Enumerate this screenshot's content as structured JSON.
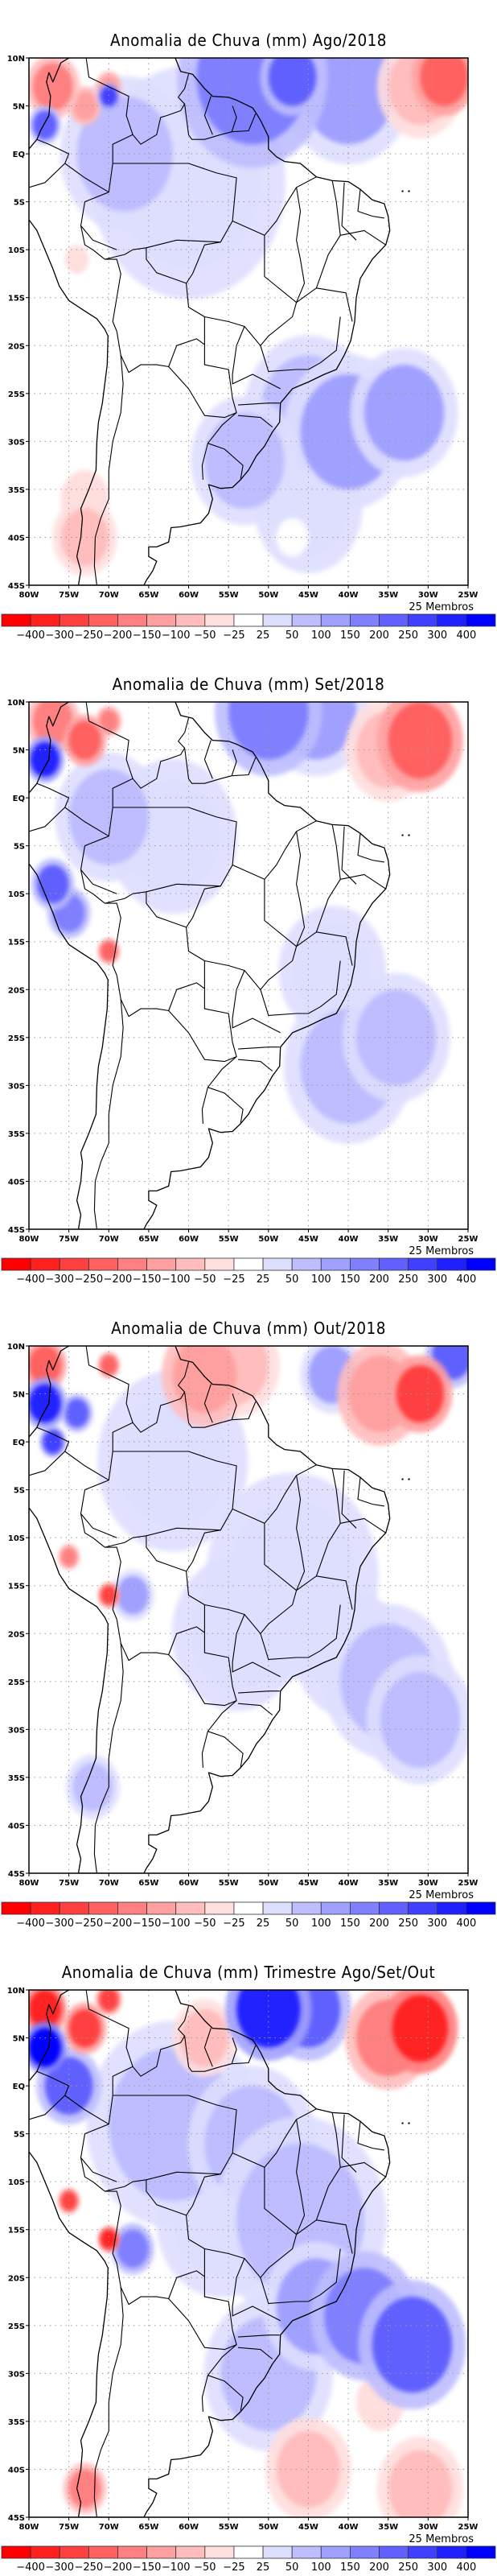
{
  "figure": {
    "members_label": "25 Membros",
    "lat_ticks": [
      "10N",
      "5N",
      "EQ",
      "5S",
      "10S",
      "15S",
      "20S",
      "25S",
      "30S",
      "35S",
      "40S",
      "45S"
    ],
    "lon_ticks": [
      "80W",
      "75W",
      "70W",
      "65W",
      "60W",
      "55W",
      "50W",
      "45W",
      "40W",
      "35W",
      "30W",
      "25W"
    ],
    "colorbar": {
      "labels": [
        "-400",
        "-300",
        "-250",
        "-200",
        "-150",
        "-100",
        "-50",
        "-25",
        "25",
        "50",
        "100",
        "150",
        "200",
        "250",
        "300",
        "400"
      ],
      "colors": [
        "#ff0000",
        "#ff2020",
        "#ff4040",
        "#ff6060",
        "#ff8080",
        "#ffa0a0",
        "#ffbdbd",
        "#ffdede",
        "#ffffff",
        "#dedeff",
        "#bdbdff",
        "#a0a0ff",
        "#8080ff",
        "#6060ff",
        "#4040ff",
        "#2020ff",
        "#0000ff"
      ]
    }
  },
  "chart_data": [
    {
      "type": "heatmap",
      "title": "Anomalia de Chuva (mm) Ago/2018",
      "xlabel": "",
      "ylabel": "",
      "xlim": [
        -80,
        -25
      ],
      "ylim": [
        -45,
        10
      ],
      "units": "mm",
      "grid": true,
      "legend": "bottom colorbar",
      "anomalies": [
        {
          "lon": -77,
          "lat": 7,
          "value": -200,
          "r": 2.5
        },
        {
          "lon": -78,
          "lat": 3,
          "value": 200,
          "r": 1.5
        },
        {
          "lon": -73,
          "lat": 5,
          "value": -150,
          "r": 1.5
        },
        {
          "lon": -70,
          "lat": 7,
          "value": -150,
          "r": 1.2
        },
        {
          "lon": -70,
          "lat": 6,
          "value": 250,
          "r": 1
        },
        {
          "lon": -68,
          "lat": 0,
          "value": 50,
          "r": 6
        },
        {
          "lon": -60,
          "lat": -3,
          "value": 25,
          "r": 9
        },
        {
          "lon": -52,
          "lat": 8,
          "value": 150,
          "r": 7
        },
        {
          "lon": -47,
          "lat": 8,
          "value": 200,
          "r": 3
        },
        {
          "lon": -40,
          "lat": 7,
          "value": 100,
          "r": 6
        },
        {
          "lon": -28,
          "lat": 8,
          "value": -250,
          "r": 3
        },
        {
          "lon": -31,
          "lat": 7,
          "value": -100,
          "r": 4
        },
        {
          "lon": -74,
          "lat": -11,
          "value": -50,
          "r": 1.5
        },
        {
          "lon": -73,
          "lat": -40,
          "value": -100,
          "r": 3
        },
        {
          "lon": -73,
          "lat": -36,
          "value": -50,
          "r": 3
        },
        {
          "lon": -40,
          "lat": -29,
          "value": 100,
          "r": 6
        },
        {
          "lon": -33,
          "lat": -27,
          "value": 100,
          "r": 5
        },
        {
          "lon": -45,
          "lat": -27,
          "value": 50,
          "r": 6
        },
        {
          "lon": -53,
          "lat": -32,
          "value": 50,
          "r": 5
        },
        {
          "lon": -45,
          "lat": -37,
          "value": 25,
          "r": 5
        },
        {
          "lon": -33,
          "lat": -40,
          "value": -25,
          "r": 3
        },
        {
          "lon": -47,
          "lat": -40,
          "value": -25,
          "r": 1.5
        }
      ]
    },
    {
      "type": "heatmap",
      "title": "Anomalia de Chuva (mm) Set/2018",
      "xlabel": "",
      "ylabel": "",
      "xlim": [
        -80,
        -25
      ],
      "ylim": [
        -45,
        10
      ],
      "units": "mm",
      "grid": true,
      "legend": "bottom colorbar",
      "anomalies": [
        {
          "lon": -77,
          "lat": 8,
          "value": -200,
          "r": 2.5
        },
        {
          "lon": -78,
          "lat": 4,
          "value": 300,
          "r": 1.8
        },
        {
          "lon": -73,
          "lat": 6,
          "value": -250,
          "r": 2
        },
        {
          "lon": -70,
          "lat": 8,
          "value": -200,
          "r": 1.2
        },
        {
          "lon": -62,
          "lat": 5,
          "value": -25,
          "r": 3
        },
        {
          "lon": -58,
          "lat": 4,
          "value": -25,
          "r": 3
        },
        {
          "lon": -70,
          "lat": -2,
          "value": 50,
          "r": 5
        },
        {
          "lon": -62,
          "lat": -4,
          "value": 25,
          "r": 6
        },
        {
          "lon": -77,
          "lat": -9,
          "value": 200,
          "r": 2
        },
        {
          "lon": -75,
          "lat": -12,
          "value": 150,
          "r": 2
        },
        {
          "lon": -70,
          "lat": -16,
          "value": -250,
          "r": 1
        },
        {
          "lon": -50,
          "lat": 9,
          "value": 150,
          "r": 5
        },
        {
          "lon": -44,
          "lat": 9,
          "value": 100,
          "r": 5
        },
        {
          "lon": -31,
          "lat": 6,
          "value": -250,
          "r": 4
        },
        {
          "lon": -35,
          "lat": 5,
          "value": -100,
          "r": 4
        },
        {
          "lon": -40,
          "lat": -28,
          "value": 50,
          "r": 6
        },
        {
          "lon": -34,
          "lat": -25,
          "value": 50,
          "r": 5
        },
        {
          "lon": -42,
          "lat": -18,
          "value": 25,
          "r": 5
        },
        {
          "lon": -37,
          "lat": -37,
          "value": -25,
          "r": 5
        },
        {
          "lon": -29,
          "lat": -38,
          "value": -25,
          "r": 4
        }
      ]
    },
    {
      "type": "heatmap",
      "title": "Anomalia de Chuva (mm) Out/2018",
      "xlabel": "",
      "ylabel": "",
      "xlim": [
        -80,
        -25
      ],
      "ylim": [
        -45,
        10
      ],
      "units": "mm",
      "grid": true,
      "legend": "bottom colorbar",
      "anomalies": [
        {
          "lon": -78,
          "lat": 8,
          "value": -250,
          "r": 2
        },
        {
          "lon": -78,
          "lat": 4,
          "value": 300,
          "r": 2
        },
        {
          "lon": -74,
          "lat": 3,
          "value": 200,
          "r": 1.5
        },
        {
          "lon": -77,
          "lat": 0,
          "value": 250,
          "r": 1.2
        },
        {
          "lon": -70,
          "lat": 8,
          "value": -250,
          "r": 1
        },
        {
          "lon": -58,
          "lat": 7,
          "value": -150,
          "r": 4
        },
        {
          "lon": -54,
          "lat": 8,
          "value": -100,
          "r": 4
        },
        {
          "lon": -62,
          "lat": -2,
          "value": 25,
          "r": 7
        },
        {
          "lon": -31,
          "lat": 5,
          "value": -300,
          "r": 3
        },
        {
          "lon": -36,
          "lat": 5,
          "value": -150,
          "r": 4
        },
        {
          "lon": -27,
          "lat": 9,
          "value": 200,
          "r": 2.5
        },
        {
          "lon": -42,
          "lat": 7,
          "value": 100,
          "r": 3
        },
        {
          "lon": -75,
          "lat": -12,
          "value": -200,
          "r": 1
        },
        {
          "lon": -70,
          "lat": -16,
          "value": -300,
          "r": 1
        },
        {
          "lon": -67,
          "lat": -16,
          "value": 100,
          "r": 2
        },
        {
          "lon": -47,
          "lat": -14,
          "value": 25,
          "r": 8
        },
        {
          "lon": -54,
          "lat": -20,
          "value": 25,
          "r": 6
        },
        {
          "lon": -35,
          "lat": -25,
          "value": 50,
          "r": 6
        },
        {
          "lon": -31,
          "lat": -29,
          "value": 50,
          "r": 5
        },
        {
          "lon": -40,
          "lat": -22,
          "value": 25,
          "r": 5
        },
        {
          "lon": -72,
          "lat": -36,
          "value": 50,
          "r": 2.5
        },
        {
          "lon": -43,
          "lat": -40,
          "value": -25,
          "r": 5
        },
        {
          "lon": -30,
          "lat": -42,
          "value": -25,
          "r": 5
        },
        {
          "lon": -38,
          "lat": -32,
          "value": -25,
          "r": 3
        }
      ]
    },
    {
      "type": "heatmap",
      "title": "Anomalia de Chuva (mm) Trimestre Ago/Set/Out",
      "xlabel": "",
      "ylabel": "",
      "xlim": [
        -80,
        -25
      ],
      "ylim": [
        -45,
        10
      ],
      "units": "mm",
      "grid": true,
      "legend": "bottom colorbar",
      "anomalies": [
        {
          "lon": -78,
          "lat": 8,
          "value": -400,
          "r": 2
        },
        {
          "lon": -78,
          "lat": 4,
          "value": 400,
          "r": 2
        },
        {
          "lon": -73,
          "lat": 6,
          "value": -300,
          "r": 2
        },
        {
          "lon": -70,
          "lat": 9,
          "value": -300,
          "r": 1.2
        },
        {
          "lon": -75,
          "lat": 0,
          "value": 200,
          "r": 3
        },
        {
          "lon": -62,
          "lat": -4,
          "value": 50,
          "r": 8
        },
        {
          "lon": -52,
          "lat": -6,
          "value": 50,
          "r": 6
        },
        {
          "lon": -46,
          "lat": -14,
          "value": 50,
          "r": 8
        },
        {
          "lon": -56,
          "lat": -14,
          "value": 25,
          "r": 6
        },
        {
          "lon": -58,
          "lat": 5,
          "value": -100,
          "r": 3
        },
        {
          "lon": -50,
          "lat": 8,
          "value": 300,
          "r": 4
        },
        {
          "lon": -45,
          "lat": 8,
          "value": 200,
          "r": 4
        },
        {
          "lon": -31,
          "lat": 6,
          "value": -400,
          "r": 3.5
        },
        {
          "lon": -35,
          "lat": 5,
          "value": -200,
          "r": 4
        },
        {
          "lon": -75,
          "lat": -12,
          "value": -300,
          "r": 1
        },
        {
          "lon": -70,
          "lat": -16,
          "value": -400,
          "r": 1
        },
        {
          "lon": -67,
          "lat": -17,
          "value": 150,
          "r": 2
        },
        {
          "lon": -32,
          "lat": -27,
          "value": 200,
          "r": 5
        },
        {
          "lon": -38,
          "lat": -24,
          "value": 150,
          "r": 5
        },
        {
          "lon": -44,
          "lat": -23,
          "value": 100,
          "r": 5
        },
        {
          "lon": -50,
          "lat": -30,
          "value": 50,
          "r": 6
        },
        {
          "lon": -73,
          "lat": -42,
          "value": -200,
          "r": 2
        },
        {
          "lon": -45,
          "lat": -40,
          "value": -100,
          "r": 4
        },
        {
          "lon": -31,
          "lat": -42,
          "value": -100,
          "r": 4
        },
        {
          "lon": -36,
          "lat": -33,
          "value": -50,
          "r": 3
        }
      ]
    }
  ]
}
